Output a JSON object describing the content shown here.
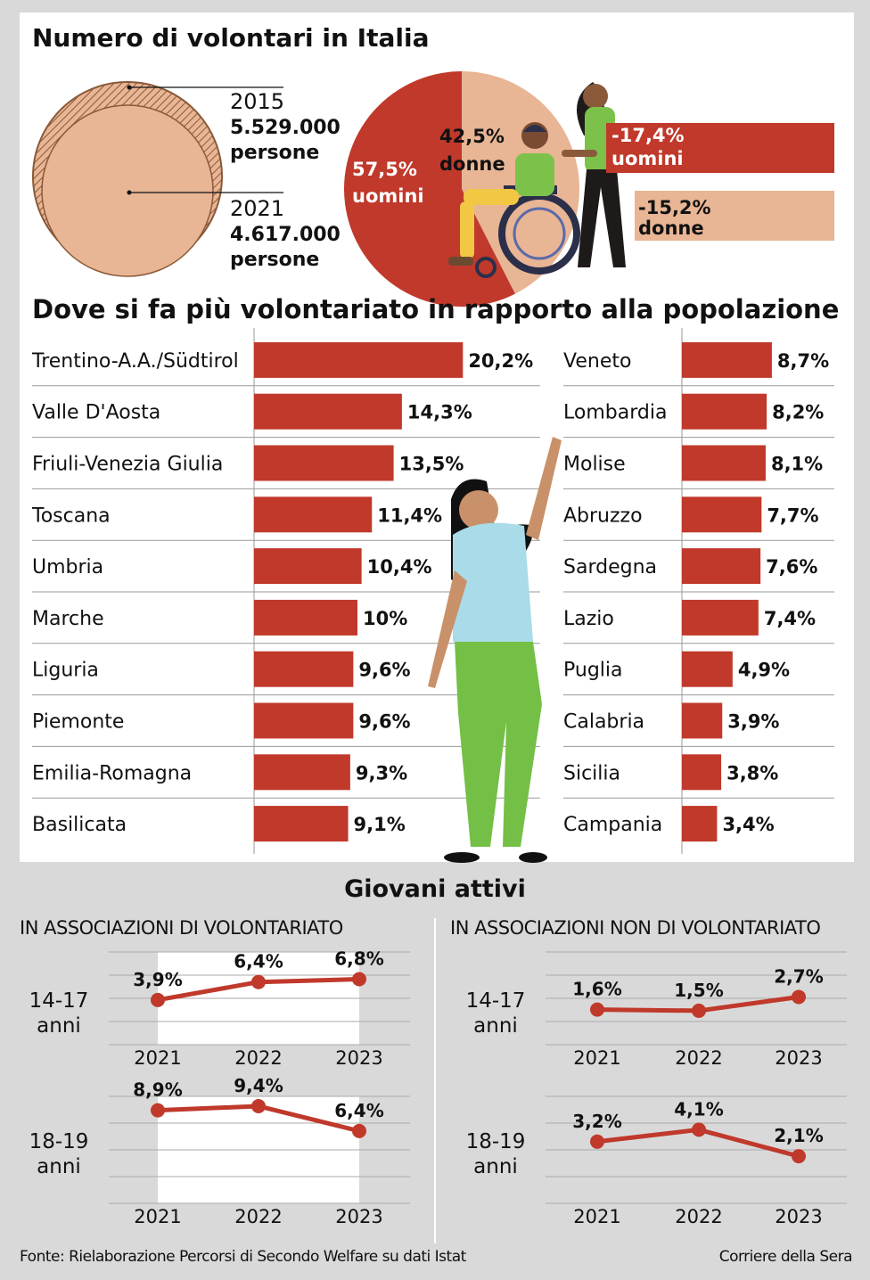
{
  "colors": {
    "red": "#c0392b",
    "peach": "#e8b595",
    "outline": "#8a5a3a",
    "line": "#c0392b"
  },
  "header": {
    "title": "Numero di volontari in Italia",
    "y2015": "2015",
    "v2015": "5.529.000",
    "u2015": "persone",
    "y2021": "2021",
    "v2021": "4.617.000",
    "u2021": "persone"
  },
  "gender": {
    "men_pct": "57,5%",
    "men_label": "uomini",
    "women_pct": "42,5%",
    "women_label": "donne",
    "men_change": "-17,4%",
    "men_change_label": "uomini",
    "women_change": "-15,2%",
    "women_change_label": "donne"
  },
  "regions_title": "Dove si fa più volontariato in rapporto alla popolazione",
  "chart_data": [
    {
      "type": "pie",
      "categories": [
        "uomini",
        "donne"
      ],
      "values": [
        57.5,
        42.5
      ]
    },
    {
      "type": "bar",
      "orientation": "horizontal",
      "title": "Dove si fa più volontariato in rapporto alla popolazione",
      "categories": [
        "Trentino-A.A./Südtirol",
        "Valle D'Aosta",
        "Friuli-Venezia Giulia",
        "Toscana",
        "Umbria",
        "Marche",
        "Liguria",
        "Piemonte",
        "Emilia-Romagna",
        "Basilicata",
        "Veneto",
        "Lombardia",
        "Molise",
        "Abruzzo",
        "Sardegna",
        "Lazio",
        "Puglia",
        "Calabria",
        "Sicilia",
        "Campania"
      ],
      "values": [
        20.2,
        14.3,
        13.5,
        11.4,
        10.4,
        10,
        9.6,
        9.6,
        9.3,
        9.1,
        8.7,
        8.2,
        8.1,
        7.7,
        7.6,
        7.4,
        4.9,
        3.9,
        3.8,
        3.4
      ],
      "labels": [
        "20,2%",
        "14,3%",
        "13,5%",
        "11,4%",
        "10,4%",
        "10%",
        "9,6%",
        "9,6%",
        "9,3%",
        "9,1%",
        "8,7%",
        "8,2%",
        "8,1%",
        "7,7%",
        "7,6%",
        "7,4%",
        "4,9%",
        "3,9%",
        "3,8%",
        "3,4%"
      ]
    },
    {
      "type": "line",
      "title": "IN ASSOCIAZIONI DI VOLONTARIATO",
      "x": [
        "2021",
        "2022",
        "2023"
      ],
      "series": [
        {
          "name": "14-17 anni",
          "values": [
            3.9,
            6.4,
            6.8
          ],
          "labels": [
            "3,9%",
            "6,4%",
            "6,8%"
          ]
        },
        {
          "name": "18-19 anni",
          "values": [
            8.9,
            9.4,
            6.4
          ],
          "labels": [
            "8,9%",
            "9,4%",
            "6,4%"
          ]
        }
      ]
    },
    {
      "type": "line",
      "title": "IN ASSOCIAZIONI NON DI VOLONTARIATO",
      "x": [
        "2021",
        "2022",
        "2023"
      ],
      "series": [
        {
          "name": "14-17 anni",
          "values": [
            1.6,
            1.5,
            2.7
          ],
          "labels": [
            "1,6%",
            "1,5%",
            "2,7%"
          ]
        },
        {
          "name": "18-19 anni",
          "values": [
            3.2,
            4.1,
            2.1
          ],
          "labels": [
            "3,2%",
            "4,1%",
            "2,1%"
          ]
        }
      ]
    }
  ],
  "youth": {
    "title": "Giovani attivi",
    "left_title": "IN ASSOCIAZIONI DI VOLONTARIATO",
    "right_title": "IN ASSOCIAZIONI NON DI VOLONTARIATO",
    "age1_a": "14-17",
    "age1_b": "anni",
    "age2_a": "18-19",
    "age2_b": "anni"
  },
  "footer": {
    "source": "Fonte: Rielaborazione Percorsi di Secondo Welfare su dati Istat",
    "credit": "Corriere della Sera"
  }
}
